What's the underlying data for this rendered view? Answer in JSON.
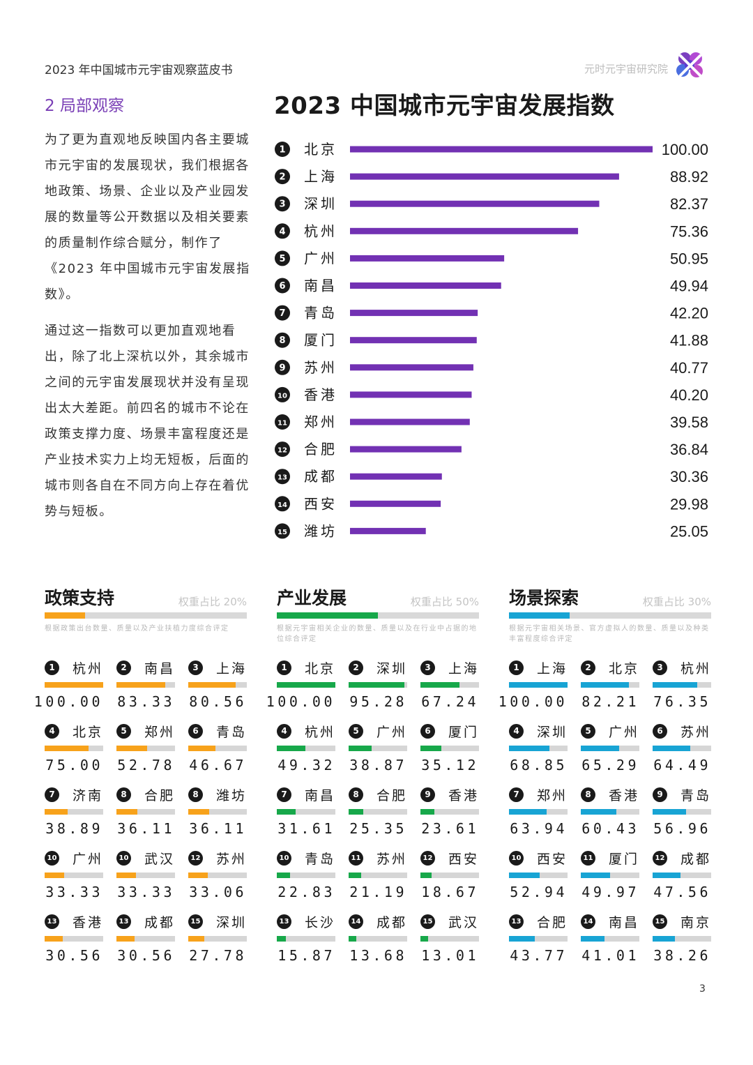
{
  "header": {
    "doc_title": "2023 年中国城市元宇宙观察蓝皮书",
    "publisher": "元时元宇宙研究院",
    "logo_icon": "flower-logo-icon"
  },
  "section": {
    "title": "2 局部观察"
  },
  "text": {
    "p1": "为了更为直观地反映国内各主要城市元宇宙的发展现状，我们根据各地政策、场景、企业以及产业园发展的数量等公开数据以及相关要素的质量制作综合赋分，制作了《2023 年中国城市元宇宙发展指数》。",
    "p2": "通过这一指数可以更加直观地看出，除了北上深杭以外，其余城市之间的元宇宙发展现状并没有呈现出太大差距。前四名的城市不论在政策支撑力度、场景丰富程度还是产业技术实力上均无短板，后面的城市则各自在不同方向上存在着优势与短板。"
  },
  "colors": {
    "purple": "#7231b3",
    "orange": "#f7a21b",
    "green": "#17a84a",
    "blue": "#18a4d4",
    "section_purple": "#7a3fb6"
  },
  "chart_data": [
    {
      "type": "bar",
      "orientation": "horizontal",
      "title": "2023 中国城市元宇宙发展指数",
      "ranks": [
        "1",
        "2",
        "3",
        "4",
        "5",
        "6",
        "7",
        "8",
        "9",
        "10",
        "11",
        "12",
        "13",
        "14",
        "15"
      ],
      "categories": [
        "北京",
        "上海",
        "深圳",
        "杭州",
        "广州",
        "南昌",
        "青岛",
        "厦门",
        "苏州",
        "香港",
        "郑州",
        "合肥",
        "成都",
        "西安",
        "潍坊"
      ],
      "values": [
        100.0,
        88.92,
        82.37,
        75.36,
        50.95,
        49.94,
        42.2,
        41.88,
        40.77,
        40.2,
        39.58,
        36.84,
        30.36,
        29.98,
        25.05
      ],
      "value_labels": [
        "100.00",
        "88.92",
        "82.37",
        "75.36",
        "50.95",
        "49.94",
        "42.20",
        "41.88",
        "40.77",
        "40.20",
        "39.58",
        "36.84",
        "30.36",
        "29.98",
        "25.05"
      ],
      "xlim": [
        0,
        100
      ],
      "color": "#7231b3",
      "grid": false
    }
  ],
  "cards": [
    {
      "title": "政策支持",
      "weight_label": "权重占比 20%",
      "weight": 0.2,
      "color": "#f7a21b",
      "desc": "根据政策出台数量、质量以及产业扶植力度综合评定",
      "items": [
        {
          "rank": "1",
          "city": "杭州",
          "value": "100.00"
        },
        {
          "rank": "2",
          "city": "南昌",
          "value": "83.33"
        },
        {
          "rank": "3",
          "city": "上海",
          "value": "80.56"
        },
        {
          "rank": "4",
          "city": "北京",
          "value": "75.00"
        },
        {
          "rank": "5",
          "city": "郑州",
          "value": "52.78"
        },
        {
          "rank": "6",
          "city": "青岛",
          "value": "46.67"
        },
        {
          "rank": "7",
          "city": "济南",
          "value": "38.89"
        },
        {
          "rank": "8",
          "city": "合肥",
          "value": "36.11"
        },
        {
          "rank": "8",
          "city": "潍坊",
          "value": "36.11"
        },
        {
          "rank": "10",
          "city": "广州",
          "value": "33.33"
        },
        {
          "rank": "10",
          "city": "武汉",
          "value": "33.33"
        },
        {
          "rank": "12",
          "city": "苏州",
          "value": "33.06"
        },
        {
          "rank": "13",
          "city": "香港",
          "value": "30.56"
        },
        {
          "rank": "13",
          "city": "成都",
          "value": "30.56"
        },
        {
          "rank": "15",
          "city": "深圳",
          "value": "27.78"
        }
      ]
    },
    {
      "title": "产业发展",
      "weight_label": "权重占比 50%",
      "weight": 0.5,
      "color": "#17a84a",
      "desc": "根据元宇宙相关企业的数量、质量以及在行业中占据的地位综合评定",
      "items": [
        {
          "rank": "1",
          "city": "北京",
          "value": "100.00"
        },
        {
          "rank": "2",
          "city": "深圳",
          "value": "95.28"
        },
        {
          "rank": "3",
          "city": "上海",
          "value": "67.24"
        },
        {
          "rank": "4",
          "city": "杭州",
          "value": "49.32"
        },
        {
          "rank": "5",
          "city": "广州",
          "value": "38.87"
        },
        {
          "rank": "6",
          "city": "厦门",
          "value": "35.12"
        },
        {
          "rank": "7",
          "city": "南昌",
          "value": "31.61"
        },
        {
          "rank": "8",
          "city": "合肥",
          "value": "25.35"
        },
        {
          "rank": "9",
          "city": "香港",
          "value": "23.61"
        },
        {
          "rank": "10",
          "city": "青岛",
          "value": "22.83"
        },
        {
          "rank": "11",
          "city": "苏州",
          "value": "21.19"
        },
        {
          "rank": "12",
          "city": "西安",
          "value": "18.67"
        },
        {
          "rank": "13",
          "city": "长沙",
          "value": "15.87"
        },
        {
          "rank": "14",
          "city": "成都",
          "value": "13.68"
        },
        {
          "rank": "15",
          "city": "武汉",
          "value": "13.01"
        }
      ]
    },
    {
      "title": "场景探索",
      "weight_label": "权重占比 30%",
      "weight": 0.3,
      "color": "#18a4d4",
      "desc": "根据元宇宙相关场景、官方虚拟人的数量、质量以及种类丰富程度综合评定",
      "items": [
        {
          "rank": "1",
          "city": "上海",
          "value": "100.00"
        },
        {
          "rank": "2",
          "city": "北京",
          "value": "82.21"
        },
        {
          "rank": "3",
          "city": "杭州",
          "value": "76.35"
        },
        {
          "rank": "4",
          "city": "深圳",
          "value": "68.85"
        },
        {
          "rank": "5",
          "city": "广州",
          "value": "65.29"
        },
        {
          "rank": "6",
          "city": "苏州",
          "value": "64.49"
        },
        {
          "rank": "7",
          "city": "郑州",
          "value": "63.94"
        },
        {
          "rank": "8",
          "city": "香港",
          "value": "60.43"
        },
        {
          "rank": "9",
          "city": "青岛",
          "value": "56.96"
        },
        {
          "rank": "10",
          "city": "西安",
          "value": "52.94"
        },
        {
          "rank": "11",
          "city": "厦门",
          "value": "49.97"
        },
        {
          "rank": "12",
          "city": "成都",
          "value": "47.56"
        },
        {
          "rank": "13",
          "city": "合肥",
          "value": "43.77"
        },
        {
          "rank": "14",
          "city": "南昌",
          "value": "41.01"
        },
        {
          "rank": "15",
          "city": "南京",
          "value": "38.26"
        }
      ]
    }
  ],
  "footer": {
    "page_number": "3"
  }
}
